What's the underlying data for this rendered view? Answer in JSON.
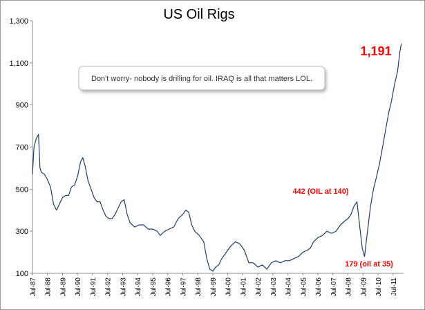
{
  "chart_data": {
    "type": "line",
    "title": "US Oil Rigs",
    "xlabel": "",
    "ylabel": "",
    "ylim": [
      100,
      1300
    ],
    "yticks": [
      100,
      300,
      500,
      700,
      900,
      1100,
      1300
    ],
    "ytick_labels": [
      "100",
      "300",
      "500",
      "700",
      "900",
      "1,100",
      "1,300"
    ],
    "xlim": [
      1987.5,
      2012.2
    ],
    "xtick_labels": [
      "Jul-87",
      "Jul-88",
      "Jul-89",
      "Jul-90",
      "Jul-91",
      "Jul-92",
      "Jul-93",
      "Jul-94",
      "Jul-95",
      "Jul-96",
      "Jul-97",
      "Jul-98",
      "Jul-99",
      "Jul-00",
      "Jul-01",
      "Jul-02",
      "Jul-03",
      "Jul-04",
      "Jul-05",
      "Jul-06",
      "Jul-07",
      "Jul-08",
      "Jul-09",
      "Jul-10",
      "Jul-11"
    ],
    "xtick_years": [
      1987.5,
      1988.5,
      1989.5,
      1990.5,
      1991.5,
      1992.5,
      1993.5,
      1994.5,
      1995.5,
      1996.5,
      1997.5,
      1998.5,
      1999.5,
      2000.5,
      2001.5,
      2002.5,
      2003.5,
      2004.5,
      2005.5,
      2006.5,
      2007.5,
      2008.5,
      2009.5,
      2010.5,
      2011.5
    ],
    "series": [
      {
        "name": "US Oil Rigs",
        "color": "#1f3d6b",
        "x": [
          1987.5,
          1987.6,
          1987.75,
          1987.9,
          1988.0,
          1988.1,
          1988.3,
          1988.5,
          1988.7,
          1988.9,
          1989.1,
          1989.3,
          1989.5,
          1989.7,
          1989.9,
          1990.1,
          1990.3,
          1990.5,
          1990.7,
          1990.85,
          1991.0,
          1991.2,
          1991.4,
          1991.6,
          1991.8,
          1992.0,
          1992.2,
          1992.4,
          1992.6,
          1992.8,
          1993.0,
          1993.2,
          1993.4,
          1993.6,
          1993.8,
          1994.0,
          1994.3,
          1994.6,
          1994.9,
          1995.2,
          1995.5,
          1995.8,
          1996.0,
          1996.3,
          1996.6,
          1996.9,
          1997.2,
          1997.5,
          1997.7,
          1997.9,
          1998.1,
          1998.3,
          1998.6,
          1998.9,
          1999.1,
          1999.3,
          1999.5,
          1999.7,
          1999.9,
          2000.1,
          2000.4,
          2000.7,
          2001.0,
          2001.3,
          2001.6,
          2001.9,
          2002.2,
          2002.5,
          2002.8,
          2003.1,
          2003.4,
          2003.7,
          2004.0,
          2004.3,
          2004.6,
          2004.9,
          2005.2,
          2005.5,
          2005.8,
          2006.0,
          2006.2,
          2006.5,
          2006.8,
          2007.1,
          2007.4,
          2007.7,
          2008.0,
          2008.3,
          2008.5,
          2008.7,
          2008.9,
          2009.1,
          2009.3,
          2009.45,
          2009.6,
          2009.8,
          2010.0,
          2010.2,
          2010.4,
          2010.6,
          2010.8,
          2011.0,
          2011.2,
          2011.4,
          2011.6,
          2011.8,
          2011.95,
          2012.05
        ],
        "y": [
          570,
          700,
          740,
          760,
          600,
          580,
          570,
          545,
          510,
          430,
          400,
          430,
          460,
          470,
          470,
          510,
          520,
          560,
          630,
          650,
          610,
          540,
          500,
          460,
          440,
          440,
          400,
          370,
          360,
          360,
          380,
          410,
          440,
          450,
          380,
          340,
          320,
          330,
          330,
          310,
          310,
          300,
          280,
          300,
          310,
          320,
          360,
          380,
          400,
          390,
          330,
          300,
          280,
          250,
          170,
          120,
          110,
          130,
          140,
          170,
          200,
          230,
          250,
          240,
          210,
          150,
          150,
          130,
          140,
          120,
          150,
          160,
          150,
          160,
          160,
          170,
          180,
          200,
          210,
          220,
          250,
          270,
          280,
          300,
          290,
          300,
          330,
          350,
          360,
          380,
          420,
          440,
          310,
          220,
          180,
          300,
          420,
          500,
          560,
          620,
          700,
          780,
          860,
          920,
          1000,
          1060,
          1150,
          1191
        ]
      }
    ],
    "annotations": [
      {
        "text": "1,191",
        "x": 2011.4,
        "y": 1191
      },
      {
        "text": "442 (OIL at 140)",
        "x": 2008.8,
        "y": 442
      },
      {
        "text": "179 (oil at 35)",
        "x": 2009.45,
        "y": 179
      }
    ],
    "callout": "Don't worry- nobody is drilling for oil. IRAQ is all that matters LOL."
  }
}
